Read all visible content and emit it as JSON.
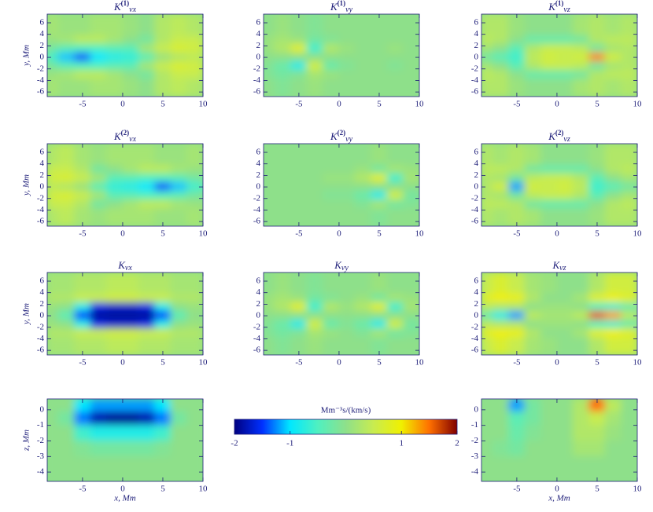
{
  "chart_data": [
    {
      "type": "heatmap",
      "title": "K",
      "title_sup": "(1)",
      "title_sub": "vx",
      "ylabel": "y, Mm",
      "xlim": [
        -9.4,
        10
      ],
      "ylim": [
        -6.8,
        7.5
      ],
      "xticks": [
        -5,
        0,
        5,
        10
      ],
      "yticks": [
        -6,
        -4,
        -2,
        0,
        2,
        4,
        6
      ],
      "x": [
        -9,
        -7,
        -5,
        -3,
        -1,
        1,
        3,
        5,
        7,
        9
      ],
      "y": [
        4.5,
        3,
        1.5,
        0,
        -1.5,
        -3,
        -4.5
      ],
      "z": [
        [
          0.2,
          0.1,
          0.1,
          0.2,
          0.2,
          0.1,
          0,
          0.3,
          0.4,
          0.3
        ],
        [
          0.1,
          0.2,
          0.4,
          0.4,
          0.2,
          0,
          -0.2,
          0.3,
          0.5,
          0.5
        ],
        [
          -0.2,
          -0.4,
          -0.5,
          -0.5,
          -0.4,
          -0.4,
          0.2,
          0.5,
          0.7,
          0.6
        ],
        [
          -0.6,
          -1.1,
          -1.4,
          -1,
          -0.8,
          -0.7,
          -0.4,
          0.1,
          0.3,
          0.4
        ],
        [
          -0.2,
          -0.4,
          -0.5,
          -0.5,
          -0.4,
          -0.4,
          0.2,
          0.5,
          0.7,
          0.6
        ],
        [
          0.1,
          0.2,
          0.4,
          0.4,
          0.2,
          0,
          -0.2,
          0.3,
          0.5,
          0.5
        ],
        [
          0.2,
          0.1,
          0.1,
          0.2,
          0.2,
          0.1,
          0,
          0.3,
          0.4,
          0.3
        ]
      ]
    },
    {
      "type": "heatmap",
      "title": "K",
      "title_sup": "(1)",
      "title_sub": "vy",
      "xlim": [
        -9.4,
        10
      ],
      "ylim": [
        -6.8,
        7.5
      ],
      "xticks": [
        -5,
        0,
        5,
        10
      ],
      "yticks": [
        -6,
        -4,
        -2,
        0,
        2,
        4,
        6
      ],
      "x": [
        -9,
        -7,
        -5,
        -3,
        -1,
        1,
        3,
        5,
        7,
        9
      ],
      "y": [
        4.5,
        3,
        1.5,
        0,
        -1.5,
        -3,
        -4.5
      ],
      "z": [
        [
          0,
          0.1,
          0,
          -0.1,
          0,
          0,
          0,
          0,
          0,
          0
        ],
        [
          0.1,
          0.2,
          0.1,
          -0.2,
          -0.1,
          0,
          0,
          0,
          0,
          0
        ],
        [
          0.1,
          0.3,
          0.8,
          -0.6,
          0.3,
          0.1,
          0,
          0,
          0.1,
          0
        ],
        [
          0,
          0,
          0,
          0,
          0,
          0,
          0,
          0,
          0,
          0
        ],
        [
          -0.1,
          -0.3,
          -0.8,
          0.6,
          -0.3,
          -0.1,
          0,
          0,
          -0.1,
          0
        ],
        [
          -0.1,
          -0.2,
          -0.1,
          0.2,
          0.1,
          0,
          0,
          0,
          0,
          0
        ],
        [
          0,
          -0.1,
          0,
          0.1,
          0,
          0,
          0,
          0,
          0,
          0
        ]
      ]
    },
    {
      "type": "heatmap",
      "title": "K",
      "title_sup": "(1)",
      "title_sub": "vz",
      "xlim": [
        -9.4,
        10
      ],
      "ylim": [
        -6.8,
        7.5
      ],
      "xticks": [
        -5,
        0,
        5,
        10
      ],
      "yticks": [
        -6,
        -4,
        -2,
        0,
        2,
        4,
        6
      ],
      "x": [
        -9,
        -7,
        -5,
        -3,
        -1,
        1,
        3,
        5,
        7,
        9
      ],
      "y": [
        4.5,
        3,
        1.5,
        0,
        -1.5,
        -3,
        -4.5
      ],
      "z": [
        [
          0.3,
          0.3,
          0.1,
          0,
          0,
          0,
          0.2,
          0.3,
          0.2,
          0.3
        ],
        [
          0.4,
          0.3,
          0,
          -0.3,
          -0.3,
          -0.3,
          -0.2,
          0.3,
          0.4,
          0.4
        ],
        [
          0.2,
          0,
          -0.4,
          0.3,
          0.5,
          0.5,
          0.4,
          -0.2,
          0.2,
          0.3
        ],
        [
          -0.2,
          -0.4,
          -0.6,
          0.4,
          0.6,
          0.5,
          0.6,
          1.4,
          0.6,
          0.3
        ],
        [
          0.2,
          0,
          -0.4,
          0.3,
          0.5,
          0.5,
          0.4,
          -0.2,
          0.2,
          0.3
        ],
        [
          0.4,
          0.3,
          0,
          -0.3,
          -0.3,
          -0.3,
          -0.2,
          0.3,
          0.4,
          0.4
        ],
        [
          0.3,
          0.3,
          0.1,
          0,
          0,
          0,
          0.2,
          0.3,
          0.2,
          0.3
        ]
      ]
    },
    {
      "type": "heatmap",
      "title": "K",
      "title_sup": "(2)",
      "title_sub": "vx",
      "ylabel": "y, Mm",
      "xlim": [
        -9.4,
        10
      ],
      "ylim": [
        -6.8,
        7.5
      ],
      "xticks": [
        -5,
        0,
        5,
        10
      ],
      "yticks": [
        -6,
        -4,
        -2,
        0,
        2,
        4,
        6
      ],
      "x": [
        -9,
        -7,
        -5,
        -3,
        -1,
        1,
        3,
        5,
        7,
        9
      ],
      "y": [
        4.5,
        3,
        1.5,
        0,
        -1.5,
        -3,
        -4.5
      ],
      "z": [
        [
          0.3,
          0.4,
          0.2,
          0.1,
          0.2,
          0.2,
          0.2,
          0.1,
          0.1,
          0.2
        ],
        [
          0.5,
          0.5,
          0.3,
          -0.2,
          0,
          0.2,
          0.4,
          0.4,
          0.2,
          0.1
        ],
        [
          0.6,
          0.7,
          0.5,
          0.2,
          -0.4,
          -0.4,
          -0.5,
          -0.5,
          -0.4,
          -0.2
        ],
        [
          0.4,
          0.3,
          0.1,
          -0.4,
          -0.7,
          -0.8,
          -1,
          -1.4,
          -1.1,
          -0.6
        ],
        [
          0.6,
          0.7,
          0.5,
          0.2,
          -0.4,
          -0.4,
          -0.5,
          -0.5,
          -0.4,
          -0.2
        ],
        [
          0.5,
          0.5,
          0.3,
          -0.2,
          0,
          0.2,
          0.4,
          0.4,
          0.2,
          0.1
        ],
        [
          0.3,
          0.4,
          0.2,
          0.1,
          0.2,
          0.2,
          0.2,
          0.1,
          0.1,
          0.2
        ]
      ]
    },
    {
      "type": "heatmap",
      "title": "K",
      "title_sup": "(2)",
      "title_sub": "vy",
      "xlim": [
        -9.4,
        10
      ],
      "ylim": [
        -6.8,
        7.5
      ],
      "xticks": [
        -5,
        0,
        5,
        10
      ],
      "yticks": [
        -6,
        -4,
        -2,
        0,
        2,
        4,
        6
      ],
      "x": [
        -9,
        -7,
        -5,
        -3,
        -1,
        1,
        3,
        5,
        7,
        9
      ],
      "y": [
        4.5,
        3,
        1.5,
        0,
        -1.5,
        -3,
        -4.5
      ],
      "z": [
        [
          0,
          0,
          0,
          0,
          0,
          0,
          0,
          0.1,
          0,
          0
        ],
        [
          0,
          0,
          0,
          0,
          0,
          0,
          0.1,
          -0.2,
          0.2,
          0.1
        ],
        [
          0,
          0,
          0,
          0,
          0.1,
          0.1,
          0.3,
          0.8,
          -0.6,
          0.2
        ],
        [
          0,
          0,
          0,
          0,
          0,
          0,
          0,
          0,
          0,
          0
        ],
        [
          0,
          0,
          0,
          0,
          -0.1,
          -0.1,
          -0.3,
          -0.8,
          0.6,
          -0.2
        ],
        [
          0,
          0,
          0,
          0,
          0,
          0,
          -0.1,
          0.2,
          -0.2,
          -0.1
        ],
        [
          0,
          0,
          0,
          0,
          0,
          0,
          0,
          -0.1,
          0,
          0
        ]
      ]
    },
    {
      "type": "heatmap",
      "title": "K",
      "title_sup": "(2)",
      "title_sub": "vz",
      "xlim": [
        -9.4,
        10
      ],
      "ylim": [
        -6.8,
        7.5
      ],
      "xticks": [
        -5,
        0,
        5,
        10
      ],
      "yticks": [
        -6,
        -4,
        -2,
        0,
        2,
        4,
        6
      ],
      "x": [
        -9,
        -7,
        -5,
        -3,
        -1,
        1,
        3,
        5,
        7,
        9
      ],
      "y": [
        4.5,
        3,
        1.5,
        0,
        -1.5,
        -3,
        -4.5
      ],
      "z": [
        [
          0.3,
          0.2,
          0.3,
          0.2,
          0,
          0,
          0,
          0.1,
          0.3,
          0.3
        ],
        [
          0.4,
          0.4,
          0.3,
          -0.2,
          -0.3,
          -0.3,
          -0.3,
          0,
          0.3,
          0.4
        ],
        [
          0.3,
          0.2,
          -0.2,
          0.4,
          0.5,
          0.5,
          0.3,
          -0.4,
          0,
          0.2
        ],
        [
          0.3,
          0.6,
          -1.2,
          0.6,
          0.5,
          0.6,
          0.4,
          -0.6,
          -0.4,
          -0.2
        ],
        [
          0.3,
          0.2,
          -0.2,
          0.4,
          0.5,
          0.5,
          0.3,
          -0.4,
          0,
          0.2
        ],
        [
          0.4,
          0.4,
          0.3,
          -0.2,
          -0.3,
          -0.3,
          -0.3,
          0,
          0.3,
          0.4
        ],
        [
          0.3,
          0.2,
          0.3,
          0.2,
          0,
          0,
          0,
          0.1,
          0.3,
          0.3
        ]
      ]
    },
    {
      "type": "heatmap",
      "title": "K",
      "title_sub": "vx",
      "ylabel": "y, Mm",
      "xlim": [
        -9.4,
        10
      ],
      "ylim": [
        -6.8,
        7.5
      ],
      "xticks": [
        -5,
        0,
        5,
        10
      ],
      "yticks": [
        -6,
        -4,
        -2,
        0,
        2,
        4,
        6
      ],
      "x": [
        -9,
        -7,
        -5,
        -3,
        -1,
        1,
        3,
        5,
        7,
        9
      ],
      "y": [
        4.5,
        3,
        1.5,
        0,
        -1.5,
        -3,
        -4.5
      ],
      "z": [
        [
          0.2,
          0.2,
          0.3,
          0.3,
          0.4,
          0.4,
          0.3,
          0.3,
          0.2,
          0.2
        ],
        [
          0.3,
          0.3,
          0.5,
          0.5,
          0.6,
          0.6,
          0.5,
          0.5,
          0.3,
          0.3
        ],
        [
          0.1,
          0,
          -0.8,
          -1.6,
          -1.7,
          -1.7,
          -1.6,
          -0.8,
          0,
          0.1
        ],
        [
          0,
          -0.4,
          -1.5,
          -1.9,
          -1.9,
          -1.9,
          -1.9,
          -1.5,
          -0.4,
          0
        ],
        [
          0.1,
          0,
          -0.8,
          -1.6,
          -1.7,
          -1.7,
          -1.6,
          -0.8,
          0,
          0.1
        ],
        [
          0.3,
          0.3,
          0.5,
          0.5,
          0.6,
          0.6,
          0.5,
          0.5,
          0.3,
          0.3
        ],
        [
          0.2,
          0.2,
          0.3,
          0.3,
          0.4,
          0.4,
          0.3,
          0.3,
          0.2,
          0.2
        ]
      ]
    },
    {
      "type": "heatmap",
      "title": "K",
      "title_sub": "vy",
      "xlim": [
        -9.4,
        10
      ],
      "ylim": [
        -6.8,
        7.5
      ],
      "xticks": [
        -5,
        0,
        5,
        10
      ],
      "yticks": [
        -6,
        -4,
        -2,
        0,
        2,
        4,
        6
      ],
      "x": [
        -9,
        -7,
        -5,
        -3,
        -1,
        1,
        3,
        5,
        7,
        9
      ],
      "y": [
        4.5,
        3,
        1.5,
        0,
        -1.5,
        -3,
        -4.5
      ],
      "z": [
        [
          0,
          0.1,
          0,
          -0.1,
          0,
          0,
          0,
          0.1,
          0,
          0
        ],
        [
          0.1,
          0.2,
          0.1,
          -0.2,
          -0.1,
          0,
          0.1,
          -0.2,
          0.2,
          0.1
        ],
        [
          0.1,
          0.3,
          0.8,
          -0.6,
          0.3,
          0.1,
          0.3,
          0.8,
          -0.6,
          0.2
        ],
        [
          0,
          0,
          0,
          0,
          0,
          0,
          0,
          0,
          0,
          0
        ],
        [
          -0.1,
          -0.3,
          -0.8,
          0.6,
          -0.3,
          -0.1,
          -0.3,
          -0.8,
          0.6,
          -0.2
        ],
        [
          -0.1,
          -0.2,
          -0.1,
          0.2,
          0.1,
          0,
          -0.1,
          0.2,
          -0.2,
          -0.1
        ],
        [
          0,
          -0.1,
          0,
          0.1,
          0,
          0,
          0,
          -0.1,
          0,
          0
        ]
      ]
    },
    {
      "type": "heatmap",
      "title": "K",
      "title_sub": "vz",
      "xlim": [
        -9.4,
        10
      ],
      "ylim": [
        -6.8,
        7.5
      ],
      "xticks": [
        -5,
        0,
        5,
        10
      ],
      "yticks": [
        -6,
        -4,
        -2,
        0,
        2,
        4,
        6
      ],
      "x": [
        -9,
        -7,
        -5,
        -3,
        -1,
        1,
        3,
        5,
        7,
        9
      ],
      "y": [
        4.5,
        3,
        1.5,
        0,
        -1.5,
        -3,
        -4.5
      ],
      "z": [
        [
          0.5,
          0.7,
          0.5,
          0.2,
          0.1,
          0,
          0,
          0.3,
          0.6,
          0.6
        ],
        [
          0.8,
          1,
          0.9,
          0.3,
          0,
          0,
          0.2,
          0.8,
          1,
          0.8
        ],
        [
          0.4,
          0.3,
          0.3,
          0,
          0.1,
          0.1,
          0,
          -0.5,
          -0.6,
          -0.3
        ],
        [
          -0.3,
          -0.8,
          -1.2,
          0.4,
          0.2,
          0.2,
          0.4,
          1.6,
          1.3,
          0.4
        ],
        [
          0.4,
          0.3,
          0.3,
          0,
          0.1,
          0.1,
          0,
          -0.5,
          -0.6,
          -0.3
        ],
        [
          0.8,
          1,
          0.9,
          0.3,
          0,
          0,
          0.2,
          0.8,
          1,
          0.8
        ],
        [
          0.5,
          0.7,
          0.5,
          0.2,
          0.1,
          0,
          0,
          0.3,
          0.6,
          0.6
        ]
      ]
    },
    {
      "type": "heatmap",
      "xlabel": "x, Mm",
      "ylabel": "z, Mm",
      "xlim": [
        -9.4,
        10
      ],
      "ylim": [
        -4.6,
        0.7
      ],
      "xticks": [
        -5,
        0,
        5,
        10
      ],
      "yticks": [
        -4,
        -3,
        -2,
        -1,
        0
      ],
      "x": [
        -9,
        -7,
        -5,
        -3,
        -1,
        1,
        3,
        5,
        7,
        9
      ],
      "y": [
        0.25,
        -0.5,
        -1.5,
        -2.5,
        -3.5,
        -4.3
      ],
      "z": [
        [
          0,
          0,
          -1,
          -1.2,
          -1.2,
          -1.2,
          -1.2,
          -1,
          0,
          0
        ],
        [
          0,
          -0.2,
          -1.3,
          -1.8,
          -1.9,
          -1.9,
          -1.8,
          -1.3,
          -0.2,
          0
        ],
        [
          0,
          0,
          -0.6,
          -0.8,
          -0.8,
          -0.8,
          -0.8,
          -0.6,
          0,
          0
        ],
        [
          0,
          0,
          -0.1,
          -0.2,
          -0.2,
          -0.2,
          -0.2,
          -0.1,
          0,
          0
        ],
        [
          0,
          0,
          0,
          0,
          0,
          0,
          0,
          0,
          0,
          0
        ],
        [
          0,
          0,
          0,
          0,
          0,
          0,
          0,
          0,
          0,
          0
        ]
      ]
    },
    {
      "type": "colorbar",
      "title": "Mm⁻³s/(km/s)",
      "zlim": [
        -2,
        2
      ],
      "ticks": [
        -2,
        -1,
        1,
        2
      ],
      "colors": [
        "#000080",
        "#0030ff",
        "#00e8ff",
        "#50f0c0",
        "#8ee08a",
        "#c8ec50",
        "#f0f000",
        "#ff7000",
        "#800000"
      ]
    },
    {
      "type": "heatmap",
      "xlabel": "x, Mm",
      "xlim": [
        -9.4,
        10
      ],
      "ylim": [
        -4.6,
        0.7
      ],
      "xticks": [
        -5,
        0,
        5,
        10
      ],
      "yticks": [
        -4,
        -3,
        -2,
        -1,
        0
      ],
      "x": [
        -9,
        -7,
        -5,
        -3,
        -1,
        1,
        3,
        5,
        7,
        9
      ],
      "y": [
        0.25,
        -0.5,
        -1.5,
        -2.5,
        -3.5,
        -4.3
      ],
      "z": [
        [
          0,
          0,
          -1.2,
          -0.2,
          0,
          0,
          0.3,
          1.5,
          0.4,
          0
        ],
        [
          0,
          0,
          -0.4,
          -0.2,
          0,
          0,
          0.3,
          0.5,
          0.2,
          0
        ],
        [
          0,
          0,
          -0.3,
          -0.1,
          0,
          0,
          0.3,
          0.3,
          0.1,
          0
        ],
        [
          0,
          -0.1,
          -0.2,
          0,
          0,
          0,
          0.2,
          0.2,
          0,
          0
        ],
        [
          0,
          0,
          0,
          0,
          0,
          0,
          0,
          0,
          0,
          0
        ],
        [
          0,
          0,
          0,
          0,
          0,
          0,
          0,
          0,
          0,
          0
        ]
      ]
    }
  ]
}
